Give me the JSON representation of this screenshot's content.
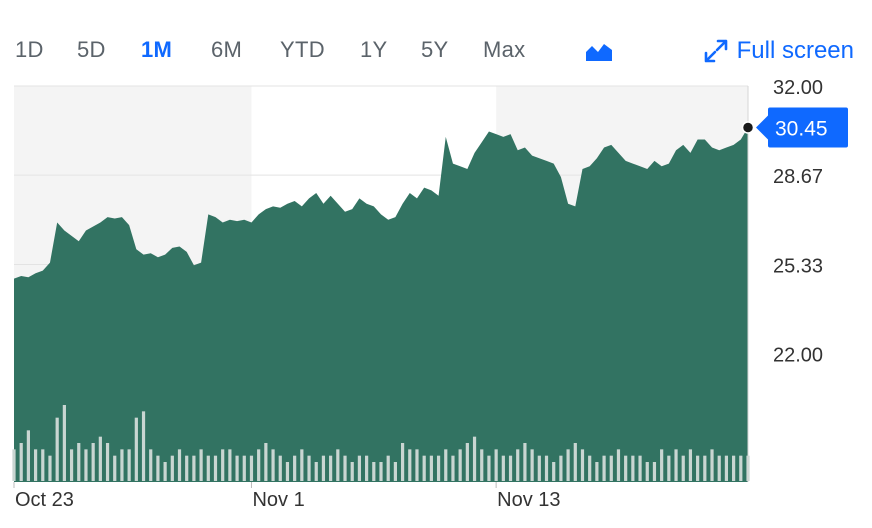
{
  "toolbar": {
    "ranges": [
      {
        "label": "1D",
        "active": false
      },
      {
        "label": "5D",
        "active": false
      },
      {
        "label": "1M",
        "active": true
      },
      {
        "label": "6M",
        "active": false
      },
      {
        "label": "YTD",
        "active": false
      },
      {
        "label": "1Y",
        "active": false
      },
      {
        "label": "5Y",
        "active": false
      },
      {
        "label": "Max",
        "active": false
      }
    ],
    "chart_type_icon": "area-chart-icon",
    "fullscreen_label": "Full screen",
    "fullscreen_icon": "expand-arrows-icon"
  },
  "colors": {
    "accent": "#0f69ff",
    "area_fill": "#327362",
    "volume_bar": "#c9d6d2",
    "shaded_band": "#f4f4f4",
    "grid": "#e3e3e3",
    "label_bg": "#0f69ff"
  },
  "chart_data": {
    "type": "area",
    "title": "",
    "xlabel": "",
    "ylabel": "",
    "ylim": [
      17.2,
      32.0
    ],
    "y_ticks": [
      "32.00",
      "28.67",
      "25.33",
      "22.00"
    ],
    "y_tick_values": [
      32.0,
      28.67,
      25.33,
      22.0
    ],
    "x_tick_labels": [
      "Oct 23",
      "Nov 1",
      "Nov 13"
    ],
    "x_tick_indices": [
      0,
      33,
      67
    ],
    "current_price_label": "30.45",
    "current_price": 30.45,
    "series": [
      {
        "values": [
          24.8,
          24.9,
          24.85,
          25.0,
          25.1,
          25.4,
          26.9,
          26.6,
          26.4,
          26.2,
          26.6,
          26.75,
          26.9,
          27.1,
          27.05,
          27.1,
          26.8,
          25.9,
          25.7,
          25.75,
          25.6,
          25.7,
          25.95,
          26.0,
          25.8,
          25.3,
          25.4,
          27.2,
          27.1,
          26.9,
          27.0,
          26.95,
          27.0,
          26.9,
          27.2,
          27.4,
          27.5,
          27.45,
          27.6,
          27.7,
          27.5,
          27.8,
          28.0,
          27.6,
          27.9,
          27.6,
          27.3,
          27.4,
          27.8,
          27.6,
          27.5,
          27.2,
          27.0,
          27.1,
          27.6,
          28.0,
          27.8,
          28.2,
          28.1,
          27.9,
          30.1,
          29.1,
          29.0,
          28.9,
          29.5,
          29.9,
          30.3,
          30.2,
          30.1,
          30.2,
          29.6,
          29.7,
          29.4,
          29.3,
          29.2,
          29.1,
          28.6,
          27.6,
          27.5,
          28.9,
          29.0,
          29.3,
          29.7,
          29.8,
          29.5,
          29.2,
          29.1,
          29.0,
          28.9,
          29.2,
          29.0,
          29.1,
          29.6,
          29.8,
          29.5,
          30.0,
          30.0,
          29.7,
          29.6,
          29.7,
          29.8,
          30.0,
          30.45
        ]
      },
      {
        "name": "Volume",
        "values": [
          5,
          6,
          8,
          5,
          5,
          4,
          10,
          12,
          5,
          6,
          5,
          6,
          7,
          6,
          4,
          5,
          5,
          10,
          11,
          5,
          4,
          3,
          4,
          5,
          4,
          4,
          5,
          4,
          4,
          5,
          5,
          4,
          4,
          4,
          5,
          6,
          5,
          4,
          3,
          4,
          5,
          4,
          3,
          4,
          4,
          5,
          4,
          3,
          4,
          4,
          3,
          3,
          4,
          3,
          6,
          5,
          5,
          4,
          4,
          4,
          5,
          4,
          5,
          6,
          7,
          5,
          4,
          5,
          4,
          4,
          5,
          6,
          5,
          4,
          4,
          3,
          4,
          5,
          6,
          5,
          4,
          3,
          4,
          4,
          5,
          4,
          4,
          4,
          3,
          3,
          5,
          4,
          5,
          4,
          5,
          4,
          4,
          5,
          4,
          4,
          4,
          4,
          4
        ]
      }
    ]
  }
}
